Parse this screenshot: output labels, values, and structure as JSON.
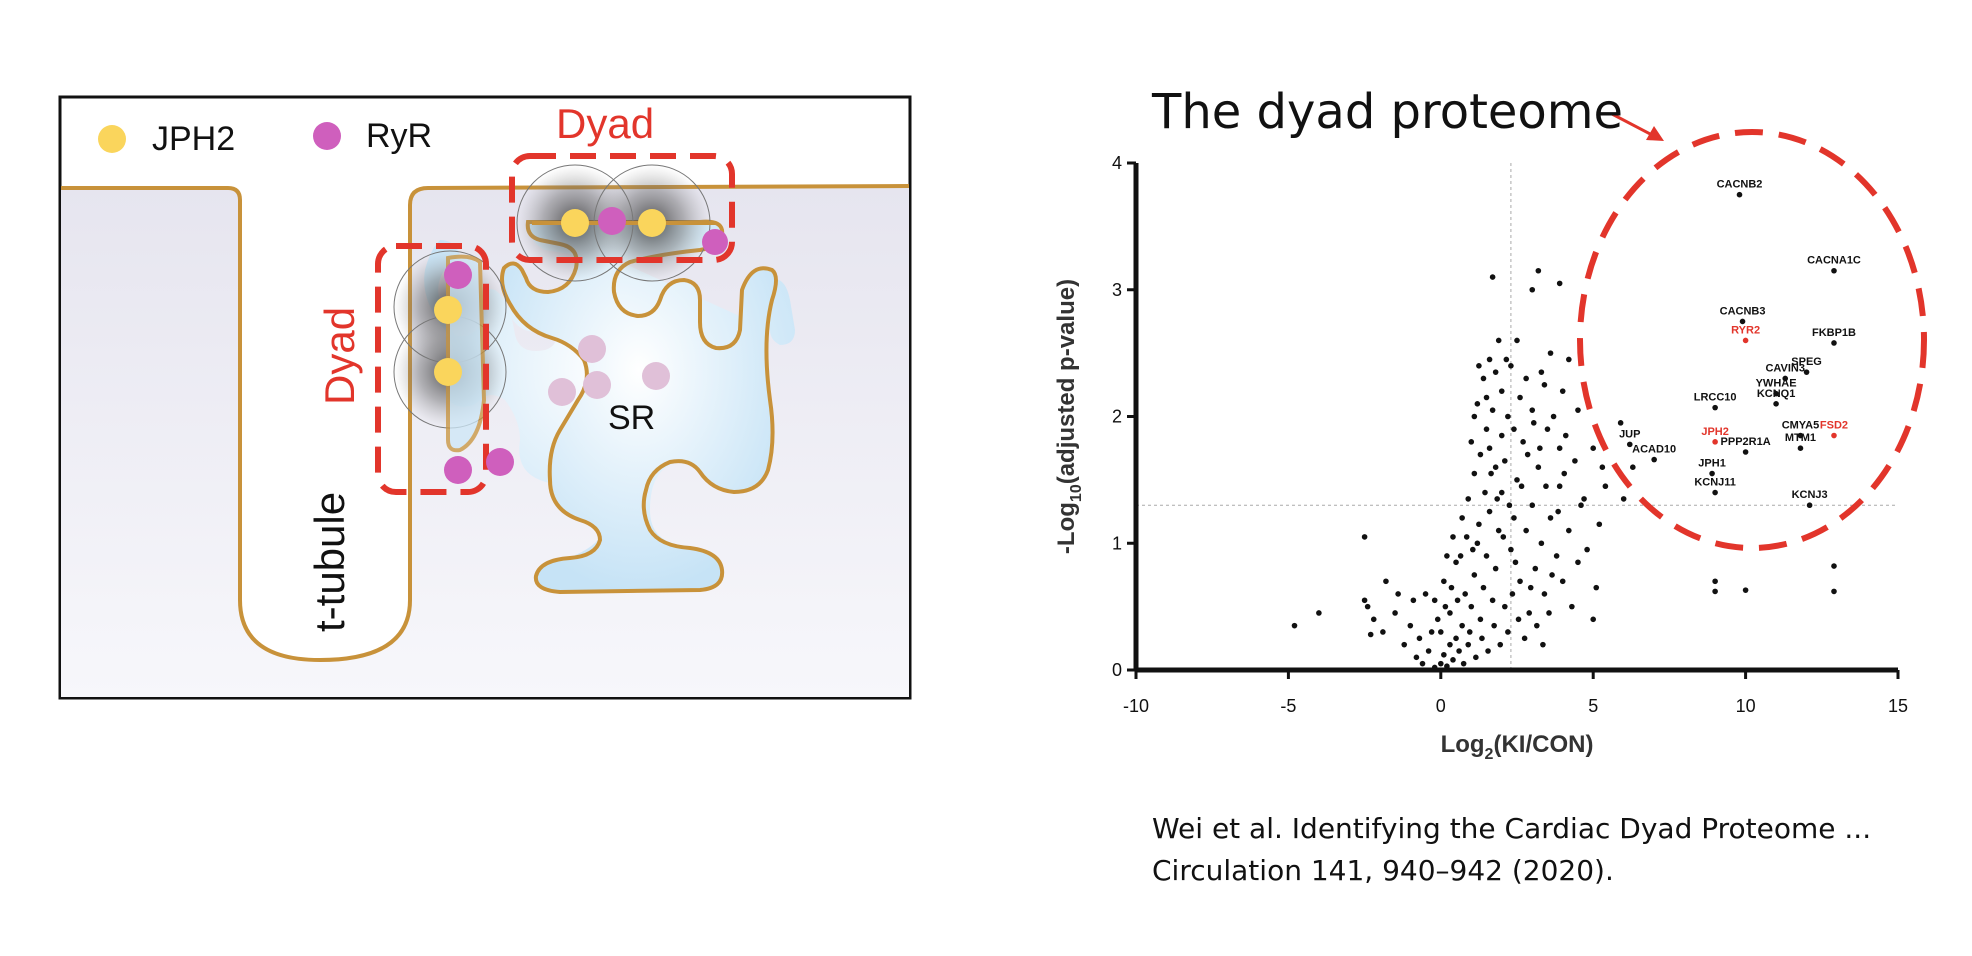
{
  "diagram": {
    "legend": {
      "jph2_label": "JPH2",
      "ryr_label": "RyR",
      "jph2_color": "#fad55c",
      "ryr_color": "#cf5fbd"
    },
    "labels": {
      "dyad_top": "Dyad",
      "dyad_side": "Dyad",
      "sr": "SR",
      "t_tubule": "t-tubule"
    },
    "colors": {
      "membrane": "#c8923a",
      "dyad_box": "#e2352b",
      "sr_fill": "#cde7f7",
      "cytoplasm": "#ebeaf2"
    }
  },
  "chart": {
    "heading": "The dyad proteome",
    "citation_line1": "Wei et al. Identifying the Cardiac Dyad Proteome ...",
    "citation_line2": "Circulation 141, 940–942 (2020).",
    "highlight_color": "#e2352b"
  },
  "chart_data": {
    "type": "scatter",
    "xlabel_main": "Log",
    "xlabel_sub": "2",
    "xlabel_rest": "(KI/CON)",
    "ylabel_main": "-Log",
    "ylabel_sub": "10",
    "ylabel_rest": "(adjusted p-value)",
    "xlim": [
      -10,
      15
    ],
    "ylim": [
      0,
      4
    ],
    "xticks": [
      -10,
      -5,
      0,
      5,
      10,
      15
    ],
    "yticks": [
      0,
      1,
      2,
      3,
      4
    ],
    "threshold_x": 2.3,
    "threshold_y": 1.3,
    "labeled_points": [
      {
        "label": "CACNB2",
        "x": 9.8,
        "y": 3.75,
        "highlight": false
      },
      {
        "label": "CACNA1C",
        "x": 12.9,
        "y": 3.15,
        "highlight": false
      },
      {
        "label": "CACNB3",
        "x": 9.9,
        "y": 2.75,
        "highlight": false
      },
      {
        "label": "RYR2",
        "x": 10.0,
        "y": 2.6,
        "highlight": true
      },
      {
        "label": "FKBP1B",
        "x": 12.9,
        "y": 2.58,
        "highlight": false
      },
      {
        "label": "SPEG",
        "x": 12.0,
        "y": 2.35,
        "highlight": false
      },
      {
        "label": "CAVIN3",
        "x": 11.3,
        "y": 2.3,
        "highlight": false
      },
      {
        "label": "YWHAE",
        "x": 11.0,
        "y": 2.18,
        "highlight": false
      },
      {
        "label": "KCNQ1",
        "x": 11.0,
        "y": 2.1,
        "highlight": false
      },
      {
        "label": "LRCC10",
        "x": 9.0,
        "y": 2.07,
        "highlight": false
      },
      {
        "label": "CMYA5",
        "x": 11.8,
        "y": 1.85,
        "highlight": false
      },
      {
        "label": "FSD2",
        "x": 12.9,
        "y": 1.85,
        "highlight": true
      },
      {
        "label": "JUP",
        "x": 6.2,
        "y": 1.78,
        "highlight": false
      },
      {
        "label": "JPH2",
        "x": 9.0,
        "y": 1.8,
        "highlight": true
      },
      {
        "label": "PPP2R1A",
        "x": 10.0,
        "y": 1.72,
        "highlight": false
      },
      {
        "label": "MTM1",
        "x": 11.8,
        "y": 1.75,
        "highlight": false
      },
      {
        "label": "ACAD10",
        "x": 7.0,
        "y": 1.66,
        "highlight": false
      },
      {
        "label": "JPH1",
        "x": 8.9,
        "y": 1.55,
        "highlight": false
      },
      {
        "label": "KCNJ11",
        "x": 9.0,
        "y": 1.4,
        "highlight": false
      },
      {
        "label": "KCNJ3",
        "x": 12.1,
        "y": 1.3,
        "highlight": false
      }
    ],
    "points": [
      [
        -4.8,
        0.35
      ],
      [
        -4.0,
        0.45
      ],
      [
        -2.5,
        0.55
      ],
      [
        -2.3,
        0.28
      ],
      [
        -2.2,
        0.4
      ],
      [
        -2.4,
        0.5
      ],
      [
        -1.8,
        0.7
      ],
      [
        -2.5,
        1.05
      ],
      [
        -1.5,
        0.45
      ],
      [
        -1.2,
        0.2
      ],
      [
        -1.0,
        0.35
      ],
      [
        -0.8,
        0.1
      ],
      [
        -0.6,
        0.05
      ],
      [
        -0.4,
        0.15
      ],
      [
        -0.3,
        0.3
      ],
      [
        -0.2,
        0.02
      ],
      [
        0.0,
        0.05
      ],
      [
        0.1,
        0.12
      ],
      [
        0.2,
        0.03
      ],
      [
        0.3,
        0.2
      ],
      [
        -0.1,
        0.4
      ],
      [
        0.4,
        0.08
      ],
      [
        0.5,
        0.25
      ],
      [
        0.6,
        0.15
      ],
      [
        -0.5,
        0.6
      ],
      [
        -0.2,
        0.55
      ],
      [
        0.1,
        0.7
      ],
      [
        0.3,
        0.45
      ],
      [
        0.7,
        0.35
      ],
      [
        0.8,
        0.6
      ],
      [
        0.2,
        0.9
      ],
      [
        0.5,
        0.85
      ],
      [
        0.9,
        0.2
      ],
      [
        1.0,
        0.5
      ],
      [
        1.1,
        0.75
      ],
      [
        0.4,
        1.05
      ],
      [
        0.7,
        1.2
      ],
      [
        1.2,
        1.0
      ],
      [
        1.3,
        0.4
      ],
      [
        1.4,
        0.65
      ],
      [
        1.5,
        0.9
      ],
      [
        0.9,
        1.35
      ],
      [
        1.1,
        1.55
      ],
      [
        1.6,
        1.25
      ],
      [
        1.7,
        0.55
      ],
      [
        1.8,
        0.8
      ],
      [
        1.9,
        1.1
      ],
      [
        2.0,
        1.4
      ],
      [
        1.3,
        1.7
      ],
      [
        1.5,
        1.9
      ],
      [
        1.7,
        2.05
      ],
      [
        2.1,
        1.65
      ],
      [
        2.2,
        0.3
      ],
      [
        2.3,
        0.95
      ],
      [
        2.4,
        1.2
      ],
      [
        2.5,
        1.5
      ],
      [
        2.6,
        0.7
      ],
      [
        2.7,
        1.8
      ],
      [
        1.2,
        2.1
      ],
      [
        1.4,
        2.3
      ],
      [
        1.6,
        2.45
      ],
      [
        1.8,
        2.35
      ],
      [
        2.0,
        2.2
      ],
      [
        2.2,
        2.0
      ],
      [
        1.9,
        2.6
      ],
      [
        2.3,
        2.4
      ],
      [
        2.8,
        1.1
      ],
      [
        2.9,
        0.45
      ],
      [
        3.0,
        1.3
      ],
      [
        3.1,
        0.8
      ],
      [
        3.2,
        1.6
      ],
      [
        3.3,
        1.0
      ],
      [
        3.4,
        0.6
      ],
      [
        3.5,
        1.9
      ],
      [
        3.6,
        1.2
      ],
      [
        3.8,
        0.9
      ],
      [
        3.9,
        1.45
      ],
      [
        4.0,
        0.7
      ],
      [
        4.2,
        1.1
      ],
      [
        4.3,
        0.5
      ],
      [
        4.5,
        0.85
      ],
      [
        4.6,
        1.3
      ],
      [
        4.8,
        0.95
      ],
      [
        5.0,
        0.4
      ],
      [
        5.1,
        0.65
      ],
      [
        5.2,
        1.15
      ],
      [
        5.3,
        1.6
      ],
      [
        3.3,
        2.35
      ],
      [
        3.6,
        2.5
      ],
      [
        3.9,
        1.75
      ],
      [
        2.5,
        2.6
      ],
      [
        1.7,
        3.1
      ],
      [
        3.2,
        3.15
      ],
      [
        3.0,
        3.0
      ],
      [
        3.9,
        3.05
      ],
      [
        4.0,
        2.2
      ],
      [
        4.2,
        2.45
      ],
      [
        4.5,
        2.05
      ],
      [
        6.0,
        1.35
      ],
      [
        6.3,
        1.6
      ],
      [
        5.9,
        1.95
      ],
      [
        9.0,
        0.7
      ],
      [
        9.0,
        0.62
      ],
      [
        10.0,
        0.63
      ],
      [
        12.9,
        0.82
      ],
      [
        12.9,
        0.62
      ],
      [
        -1.9,
        0.3
      ],
      [
        -1.4,
        0.6
      ],
      [
        -0.9,
        0.55
      ],
      [
        -0.7,
        0.25
      ],
      [
        0.0,
        0.3
      ],
      [
        0.15,
        0.5
      ],
      [
        0.35,
        0.65
      ],
      [
        0.55,
        0.55
      ],
      [
        0.65,
        0.9
      ],
      [
        0.85,
        1.05
      ],
      [
        1.05,
        0.95
      ],
      [
        1.25,
        1.15
      ],
      [
        1.45,
        1.4
      ],
      [
        1.65,
        1.55
      ],
      [
        1.85,
        1.35
      ],
      [
        2.05,
        1.05
      ],
      [
        2.25,
        1.3
      ],
      [
        2.45,
        0.85
      ],
      [
        2.65,
        1.45
      ],
      [
        2.85,
        1.7
      ],
      [
        3.05,
        1.95
      ],
      [
        3.25,
        1.75
      ],
      [
        3.45,
        1.45
      ],
      [
        3.65,
        0.75
      ],
      [
        3.85,
        1.25
      ],
      [
        4.05,
        1.55
      ],
      [
        2.1,
        0.5
      ],
      [
        1.95,
        0.2
      ],
      [
        1.75,
        0.35
      ],
      [
        1.55,
        0.15
      ],
      [
        1.35,
        0.25
      ],
      [
        1.15,
        0.1
      ],
      [
        0.95,
        0.3
      ],
      [
        0.75,
        0.05
      ],
      [
        2.35,
        0.6
      ],
      [
        2.55,
        0.4
      ],
      [
        2.75,
        0.25
      ],
      [
        2.95,
        0.65
      ],
      [
        3.15,
        0.35
      ],
      [
        3.35,
        0.2
      ],
      [
        3.55,
        0.45
      ],
      [
        1.0,
        1.8
      ],
      [
        1.1,
        2.0
      ],
      [
        1.25,
        2.4
      ],
      [
        1.5,
        2.15
      ],
      [
        1.6,
        1.75
      ],
      [
        1.8,
        1.6
      ],
      [
        2.0,
        1.85
      ],
      [
        2.15,
        2.45
      ],
      [
        2.4,
        1.9
      ],
      [
        2.6,
        2.15
      ],
      [
        2.8,
        2.3
      ],
      [
        3.0,
        2.05
      ],
      [
        3.4,
        2.25
      ],
      [
        3.7,
        2.0
      ],
      [
        4.1,
        1.85
      ],
      [
        4.4,
        1.65
      ],
      [
        4.7,
        1.35
      ],
      [
        5.0,
        1.75
      ],
      [
        5.4,
        1.45
      ]
    ]
  }
}
